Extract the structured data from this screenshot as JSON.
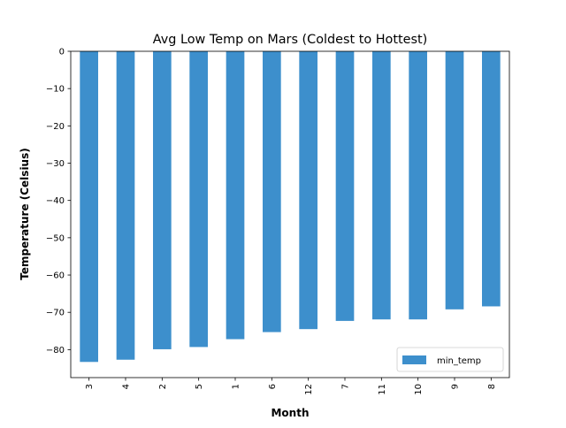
{
  "chart_data": {
    "type": "bar",
    "title": "Avg Low Temp on Mars (Coldest to Hottest)",
    "xlabel": "Month",
    "ylabel": "Temperature (Celsius)",
    "categories": [
      "3",
      "4",
      "2",
      "5",
      "1",
      "6",
      "12",
      "7",
      "11",
      "10",
      "9",
      "8"
    ],
    "series": [
      {
        "name": "min_temp",
        "color": "#3d8fcc",
        "values": [
          -83.3,
          -82.7,
          -79.9,
          -79.3,
          -77.2,
          -75.3,
          -74.5,
          -72.3,
          -71.9,
          -71.9,
          -69.2,
          -68.4
        ]
      }
    ],
    "ylim": [
      -87.5,
      0
    ],
    "yticks": [
      0,
      -10,
      -20,
      -30,
      -40,
      -50,
      -60,
      -70,
      -80
    ],
    "grid": false,
    "legend_position": "lower right",
    "x_tick_rotation": "vertical"
  }
}
